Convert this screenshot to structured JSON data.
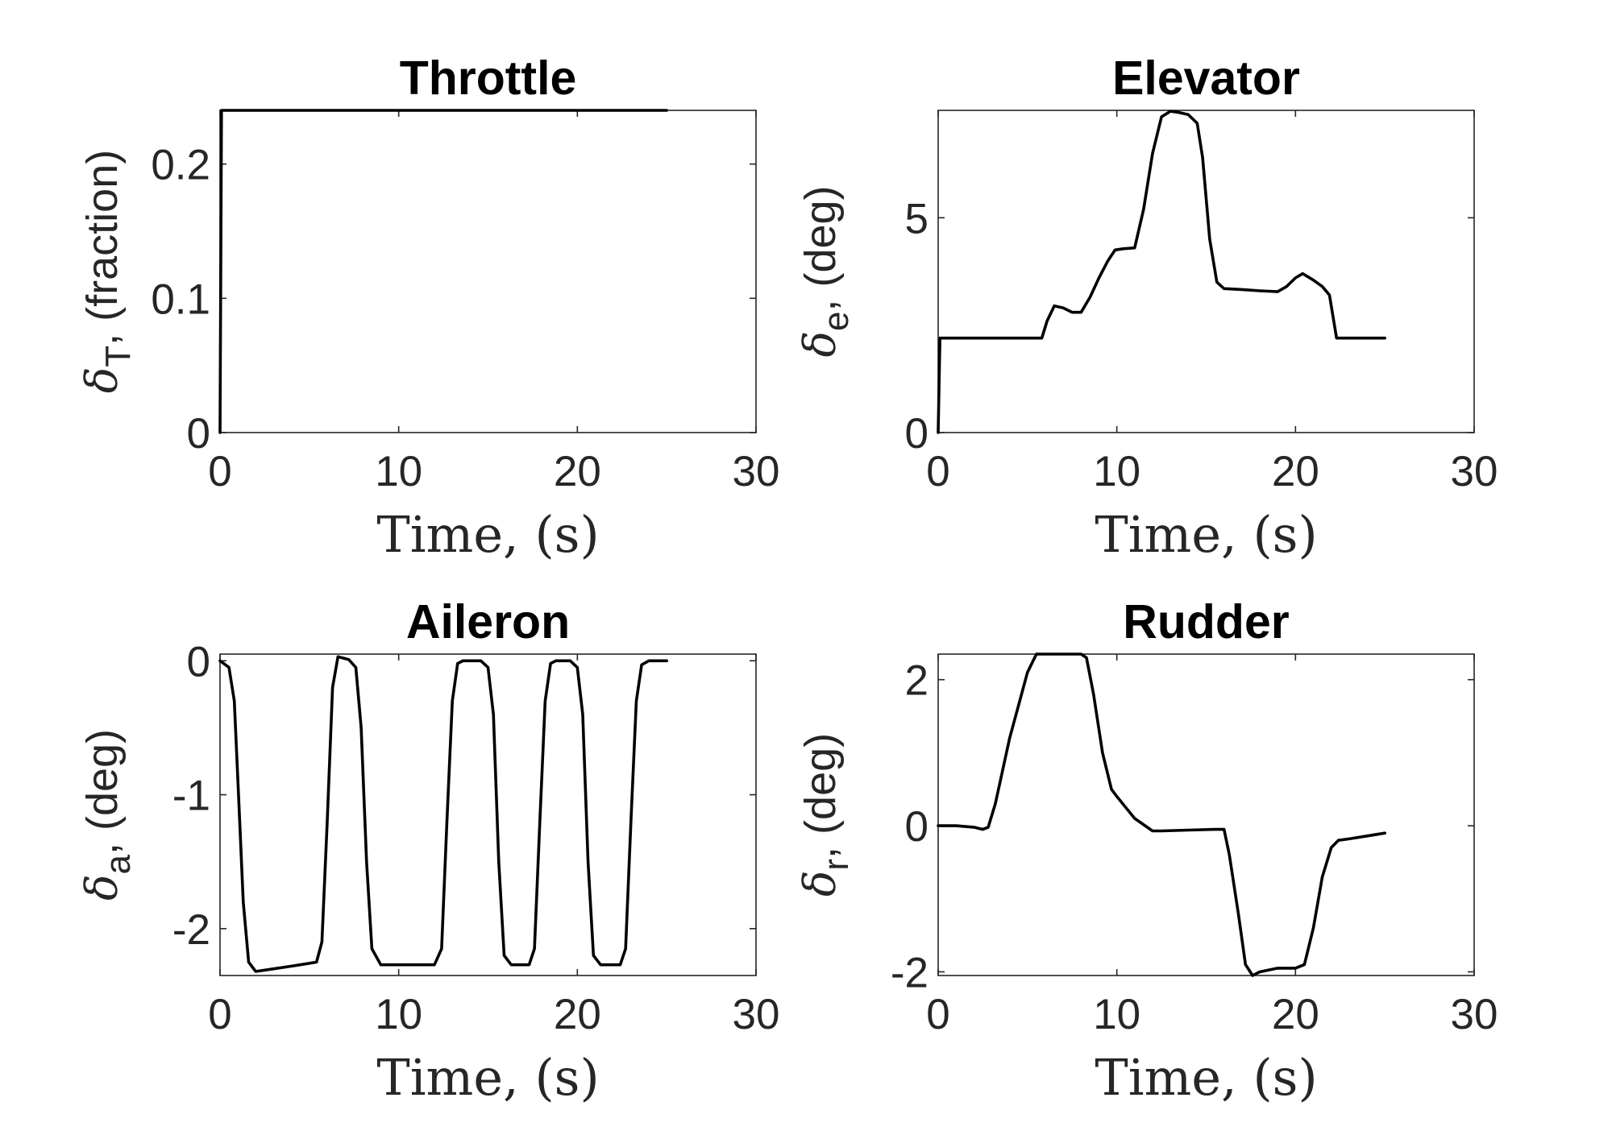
{
  "chart_data": [
    {
      "type": "line",
      "title": "Throttle",
      "xlabel": "Time, (s)",
      "ylabel": {
        "symbol": "δ",
        "sub": "T",
        "rest": ", (fraction)"
      },
      "xlim": [
        0,
        30
      ],
      "ylim": [
        0,
        0.24
      ],
      "xticks": [
        "0",
        "10",
        "20",
        "30"
      ],
      "yticks": [
        "0",
        "0.1",
        "0.2"
      ],
      "xtick_values": [
        0,
        10,
        20,
        30
      ],
      "ytick_values": [
        0,
        0.1,
        0.2
      ],
      "grid": true,
      "series": [
        {
          "x": [
            0,
            0.08,
            0.2,
            5,
            10,
            15,
            20,
            25
          ],
          "y": [
            0,
            0.24,
            0.24,
            0.24,
            0.24,
            0.24,
            0.24,
            0.24
          ]
        }
      ]
    },
    {
      "type": "line",
      "title": "Elevator",
      "xlabel": "Time, (s)",
      "ylabel": {
        "symbol": "δ",
        "sub": "e",
        "rest": ", (deg)"
      },
      "xlim": [
        0,
        30
      ],
      "ylim": [
        0,
        7.5
      ],
      "xticks": [
        "0",
        "10",
        "20",
        "30"
      ],
      "yticks": [
        "0",
        "5"
      ],
      "xtick_values": [
        0,
        10,
        20,
        30
      ],
      "ytick_values": [
        0,
        5
      ],
      "grid": true,
      "series": [
        {
          "x": [
            0,
            0.1,
            0.3,
            3,
            5.8,
            6.1,
            6.5,
            7,
            7.5,
            8,
            8.5,
            9,
            9.5,
            9.9,
            10.4,
            11,
            11.5,
            12,
            12.5,
            13,
            13.5,
            14,
            14.5,
            14.8,
            15.2,
            15.6,
            16,
            17,
            18,
            19,
            19.5,
            20,
            20.4,
            21,
            21.5,
            21.9,
            22.1,
            22.3,
            23,
            25
          ],
          "y": [
            0,
            2.2,
            2.2,
            2.2,
            2.2,
            2.6,
            2.95,
            2.9,
            2.8,
            2.8,
            3.15,
            3.6,
            4.0,
            4.25,
            4.28,
            4.3,
            5.2,
            6.5,
            7.35,
            7.48,
            7.45,
            7.4,
            7.2,
            6.4,
            4.5,
            3.5,
            3.35,
            3.33,
            3.3,
            3.28,
            3.4,
            3.6,
            3.7,
            3.55,
            3.4,
            3.2,
            2.7,
            2.2,
            2.2,
            2.2
          ]
        }
      ]
    },
    {
      "type": "line",
      "title": "Aileron",
      "xlabel": "Time, (s)",
      "ylabel": {
        "symbol": "δ",
        "sub": "a",
        "rest": ", (deg)"
      },
      "xlim": [
        0,
        30
      ],
      "ylim": [
        -2.35,
        0.05
      ],
      "xticks": [
        "0",
        "10",
        "20",
        "30"
      ],
      "yticks": [
        "-2",
        "-1",
        "0"
      ],
      "xtick_values": [
        0,
        10,
        20,
        30
      ],
      "ytick_values": [
        -2,
        -1,
        0
      ],
      "grid": true,
      "series": [
        {
          "x": [
            0,
            0.5,
            0.8,
            1.0,
            1.3,
            1.6,
            2.0,
            3,
            4,
            5.4,
            5.7,
            6.0,
            6.3,
            6.6,
            7.2,
            7.6,
            7.9,
            8.2,
            8.5,
            9,
            10,
            12,
            12.4,
            12.7,
            13.0,
            13.3,
            13.6,
            14.6,
            15.0,
            15.3,
            15.6,
            15.9,
            16.3,
            17.3,
            17.6,
            17.9,
            18.2,
            18.5,
            18.8,
            19.6,
            20.0,
            20.3,
            20.6,
            20.9,
            21.3,
            22.4,
            22.7,
            23.0,
            23.3,
            23.6,
            24,
            25
          ],
          "y": [
            0,
            -0.05,
            -0.3,
            -0.9,
            -1.8,
            -2.25,
            -2.32,
            -2.3,
            -2.28,
            -2.25,
            -2.1,
            -1.2,
            -0.2,
            0.03,
            0.01,
            -0.05,
            -0.5,
            -1.5,
            -2.15,
            -2.27,
            -2.27,
            -2.27,
            -2.15,
            -1.2,
            -0.3,
            -0.02,
            0,
            0,
            -0.05,
            -0.4,
            -1.5,
            -2.2,
            -2.27,
            -2.27,
            -2.15,
            -1.2,
            -0.3,
            -0.02,
            0,
            0,
            -0.05,
            -0.4,
            -1.5,
            -2.2,
            -2.27,
            -2.27,
            -2.15,
            -1.2,
            -0.3,
            -0.03,
            0,
            0
          ]
        }
      ]
    },
    {
      "type": "line",
      "title": "Rudder",
      "xlabel": "Time, (s)",
      "ylabel": {
        "symbol": "δ",
        "sub": "r",
        "rest": ", (deg)"
      },
      "xlim": [
        0,
        30
      ],
      "ylim": [
        -2.05,
        2.35
      ],
      "xticks": [
        "0",
        "10",
        "20",
        "30"
      ],
      "yticks": [
        "-2",
        "0",
        "2"
      ],
      "xtick_values": [
        0,
        10,
        20,
        30
      ],
      "ytick_values": [
        -2,
        0,
        2
      ],
      "grid": true,
      "series": [
        {
          "x": [
            0,
            1,
            2,
            2.5,
            2.8,
            3.2,
            4,
            5,
            5.5,
            6,
            7,
            8,
            8.3,
            8.7,
            9.2,
            9.7,
            10,
            11,
            12,
            12.5,
            14,
            15.5,
            16,
            16.3,
            16.8,
            17.2,
            17.6,
            18,
            19,
            20,
            20.5,
            21,
            21.5,
            22,
            22.4,
            23,
            24,
            25
          ],
          "y": [
            0,
            0,
            -0.02,
            -0.05,
            -0.02,
            0.3,
            1.2,
            2.1,
            2.35,
            2.35,
            2.35,
            2.35,
            2.3,
            1.8,
            1.0,
            0.5,
            0.4,
            0.1,
            -0.07,
            -0.07,
            -0.06,
            -0.05,
            -0.05,
            -0.4,
            -1.2,
            -1.9,
            -2.05,
            -2.0,
            -1.95,
            -1.95,
            -1.9,
            -1.4,
            -0.7,
            -0.3,
            -0.2,
            -0.18,
            -0.14,
            -0.1
          ]
        }
      ]
    }
  ]
}
